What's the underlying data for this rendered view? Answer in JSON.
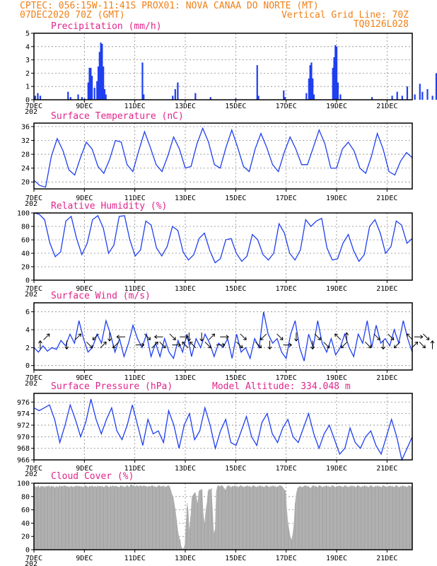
{
  "header": {
    "line1_left": "CPTEC:   056:15W-11:41S  PROX01: NOVA CANAA DO NORTE (MT)",
    "line2_left": "07DEC2020 70Z (GMT)",
    "line2_right": "Vertical Grid Line: 70Z",
    "line3_right": "TQ0126L028"
  },
  "x_tick_labels": [
    "7DEC",
    "9DEC",
    "11DEC",
    "13DEC",
    "15DEC",
    "17DEC",
    "19DEC",
    "21DEC"
  ],
  "year_fragment": "202",
  "chart_data": [
    {
      "type": "bar",
      "title": "Precipitation (mm/h)",
      "color": "#1f3ff0",
      "ylim": [
        0,
        5
      ],
      "yticks": [
        0,
        1,
        2,
        3,
        4,
        5
      ],
      "grid": true,
      "events": [
        [
          0.05,
          0.3
        ],
        [
          0.15,
          0.5
        ],
        [
          0.25,
          0.3
        ],
        [
          1.35,
          0.6
        ],
        [
          1.45,
          0.2
        ],
        [
          1.75,
          0.4
        ],
        [
          1.9,
          0.2
        ],
        [
          2.0,
          0.1
        ],
        [
          2.15,
          1.3
        ],
        [
          2.2,
          2.4
        ],
        [
          2.25,
          2.4
        ],
        [
          2.3,
          1.8
        ],
        [
          2.4,
          0.9
        ],
        [
          2.5,
          1.4
        ],
        [
          2.55,
          2.5
        ],
        [
          2.6,
          3.6
        ],
        [
          2.65,
          4.3
        ],
        [
          2.7,
          4.2
        ],
        [
          2.75,
          2.5
        ],
        [
          2.8,
          0.8
        ],
        [
          2.85,
          0.4
        ],
        [
          4.3,
          2.8
        ],
        [
          4.35,
          0.4
        ],
        [
          5.5,
          0.3
        ],
        [
          5.6,
          0.8
        ],
        [
          5.7,
          1.3
        ],
        [
          6.4,
          0.5
        ],
        [
          7.0,
          0.2
        ],
        [
          8.0,
          0.1
        ],
        [
          8.85,
          2.6
        ],
        [
          8.9,
          0.3
        ],
        [
          9.9,
          0.7
        ],
        [
          9.95,
          0.2
        ],
        [
          10.8,
          0.5
        ],
        [
          10.9,
          1.6
        ],
        [
          10.95,
          2.6
        ],
        [
          11.0,
          2.8
        ],
        [
          11.05,
          1.6
        ],
        [
          11.1,
          0.4
        ],
        [
          11.85,
          2.4
        ],
        [
          11.9,
          3.2
        ],
        [
          11.95,
          4.1
        ],
        [
          12.0,
          4.0
        ],
        [
          12.05,
          1.3
        ],
        [
          12.15,
          0.4
        ],
        [
          13.4,
          0.2
        ],
        [
          14.2,
          0.3
        ],
        [
          14.4,
          0.6
        ],
        [
          14.6,
          0.3
        ],
        [
          14.8,
          1.0
        ],
        [
          15.1,
          0.4
        ],
        [
          15.3,
          1.2
        ],
        [
          15.4,
          0.6
        ],
        [
          15.6,
          0.8
        ],
        [
          15.8,
          0.3
        ],
        [
          15.95,
          2.0
        ]
      ]
    },
    {
      "type": "line",
      "title": "Surface Temperature (nC)",
      "color": "#1f3ff0",
      "ylim": [
        18,
        37
      ],
      "yticks": [
        20,
        24,
        28,
        32,
        36
      ],
      "grid": true,
      "y": [
        20.5,
        19,
        18.5,
        27.5,
        32.5,
        29,
        23.5,
        22,
        27,
        31.5,
        29.5,
        24.5,
        22.5,
        26.5,
        32,
        31.5,
        25,
        23,
        29,
        34.5,
        30,
        25,
        23,
        27.5,
        33,
        29.5,
        24,
        24.5,
        31,
        35.5,
        31.5,
        25,
        24,
        30,
        35,
        30,
        24.5,
        23,
        29.5,
        34,
        30,
        25,
        23,
        28.5,
        33,
        29.5,
        25,
        25,
        30,
        35,
        31,
        24,
        24,
        29.5,
        31.5,
        29,
        24,
        22.5,
        27.5,
        34,
        29.5,
        23,
        22,
        26,
        28.5,
        27
      ]
    },
    {
      "type": "line",
      "title": "Relative Humidity (%)",
      "color": "#1f3ff0",
      "ylim": [
        0,
        100
      ],
      "yticks": [
        0,
        20,
        40,
        60,
        80,
        100
      ],
      "grid": true,
      "y": [
        100,
        98,
        90,
        55,
        35,
        42,
        88,
        95,
        62,
        38,
        55,
        90,
        96,
        78,
        40,
        52,
        95,
        96,
        60,
        36,
        45,
        88,
        82,
        48,
        36,
        50,
        80,
        74,
        42,
        30,
        38,
        62,
        70,
        44,
        26,
        32,
        60,
        62,
        40,
        28,
        36,
        68,
        60,
        38,
        30,
        40,
        84,
        70,
        40,
        30,
        45,
        90,
        80,
        88,
        92,
        48,
        30,
        32,
        55,
        68,
        44,
        28,
        38,
        80,
        90,
        70,
        40,
        50,
        88,
        82,
        55,
        62
      ]
    },
    {
      "type": "line",
      "title": "Surface Wind (m/s)",
      "color": "#1f3ff0",
      "ylim": [
        -0.5,
        7
      ],
      "yticks": [
        0,
        2,
        4,
        6
      ],
      "grid": true,
      "y": [
        2.0,
        1.5,
        2.2,
        1.6,
        2.0,
        1.8,
        2.8,
        2.2,
        3.5,
        2.5,
        5.0,
        3.0,
        1.5,
        2.0,
        3.5,
        2.5,
        5.0,
        3.5,
        1.5,
        3.0,
        1.0,
        2.5,
        4.5,
        3.0,
        2.0,
        3.5,
        1.0,
        2.5,
        1.0,
        3.0,
        1.5,
        0.8,
        2.8,
        1.5,
        3.5,
        1.0,
        3.0,
        2.0,
        3.5,
        2.5,
        1.0,
        2.5,
        2.0,
        3.0,
        0.8,
        3.5,
        1.5,
        2.0,
        0.8,
        3.0,
        2.0,
        6.0,
        3.5,
        2.5,
        3.0,
        1.5,
        0.8,
        3.5,
        5.0,
        2.0,
        0.5,
        3.5,
        2.0,
        5.0,
        2.5,
        1.5,
        3.0,
        1.2,
        2.0,
        3.5,
        2.0,
        1.0,
        3.5,
        2.5,
        5.0,
        2.0,
        4.5,
        2.5,
        3.0,
        2.2,
        4.0,
        2.5,
        5.0,
        3.0,
        1.5
      ],
      "arrows": [
        [
          0.25,
          "N"
        ],
        [
          0.5,
          "NE"
        ],
        [
          1.3,
          "S"
        ],
        [
          1.75,
          "NE"
        ],
        [
          2.2,
          "SE"
        ],
        [
          2.45,
          "SW"
        ],
        [
          2.75,
          "NE"
        ],
        [
          3.0,
          "S"
        ],
        [
          3.25,
          "SW"
        ],
        [
          3.45,
          "W"
        ],
        [
          4.2,
          "E"
        ],
        [
          4.5,
          "SE"
        ],
        [
          4.8,
          "NE"
        ],
        [
          4.95,
          "W"
        ],
        [
          5.1,
          "SE"
        ],
        [
          5.5,
          "SE"
        ],
        [
          5.65,
          "E"
        ],
        [
          5.95,
          "E"
        ],
        [
          6.0,
          "NW"
        ],
        [
          6.15,
          "S"
        ],
        [
          6.3,
          "NW"
        ],
        [
          6.65,
          "S"
        ],
        [
          6.9,
          "SE"
        ],
        [
          7.05,
          "NE"
        ],
        [
          7.4,
          "E"
        ],
        [
          7.55,
          "E"
        ],
        [
          8.15,
          "SE"
        ],
        [
          8.3,
          "SE"
        ],
        [
          8.9,
          "SE"
        ],
        [
          9.1,
          "SW"
        ],
        [
          9.35,
          "S"
        ],
        [
          9.75,
          "SE"
        ],
        [
          10.05,
          "E"
        ],
        [
          10.4,
          "S"
        ],
        [
          11.05,
          "S"
        ],
        [
          11.25,
          "SE"
        ],
        [
          11.6,
          "SE"
        ],
        [
          12.05,
          "NW"
        ],
        [
          12.3,
          "SW"
        ],
        [
          12.4,
          "N"
        ],
        [
          13.25,
          "SE"
        ],
        [
          13.6,
          "SE"
        ],
        [
          13.85,
          "S"
        ],
        [
          14.15,
          "SE"
        ],
        [
          14.4,
          "SW"
        ],
        [
          14.9,
          "NW"
        ],
        [
          15.1,
          "NE"
        ],
        [
          15.25,
          "E"
        ],
        [
          15.4,
          "SE"
        ],
        [
          15.55,
          "SE"
        ],
        [
          15.8,
          "N"
        ]
      ]
    },
    {
      "type": "line",
      "title": "Surface Pressure (hPa)",
      "annotation": "Model Altitude: 334.048 m",
      "color": "#1f3ff0",
      "ylim": [
        966,
        977.5
      ],
      "yticks": [
        966,
        968,
        970,
        972,
        974,
        976
      ],
      "grid": true,
      "y": [
        975,
        974.5,
        975,
        975.5,
        973,
        969,
        972,
        975.5,
        973,
        970,
        972.5,
        976.5,
        973,
        970.5,
        973,
        975,
        971,
        969.5,
        972,
        975.5,
        972,
        968.5,
        973,
        970.5,
        971,
        969,
        974.5,
        972,
        968,
        972,
        974,
        969.5,
        971,
        975,
        972,
        968,
        971,
        973,
        969,
        968.5,
        971,
        973.5,
        970,
        968.5,
        972.5,
        974,
        970.5,
        969,
        971.5,
        973,
        970,
        969,
        971.5,
        974,
        970.5,
        968,
        970.5,
        972,
        969.5,
        967,
        968,
        971.5,
        969,
        968,
        970,
        971,
        968.5,
        967,
        970,
        973,
        970,
        966,
        968,
        970
      ]
    },
    {
      "type": "area",
      "title": "Cloud Cover (%)",
      "color": "#b0b0b0",
      "ylim": [
        0,
        100
      ],
      "yticks": [
        0,
        20,
        40,
        60,
        80,
        100
      ],
      "grid": true,
      "y": [
        95,
        96,
        94,
        95,
        97,
        93,
        96,
        95,
        96,
        94,
        95,
        96,
        95,
        97,
        94,
        96,
        95,
        96,
        93,
        96,
        95,
        94,
        97,
        95,
        96,
        95,
        97,
        96,
        95,
        96,
        94,
        95,
        96,
        95,
        94,
        96,
        95,
        97,
        95,
        96,
        95,
        96,
        94,
        95,
        97,
        96,
        95,
        94,
        96,
        95,
        97,
        95,
        95,
        96,
        94,
        97,
        95,
        96,
        95,
        96,
        94,
        95,
        97,
        96,
        95,
        94,
        96,
        95,
        97,
        95,
        96,
        96,
        95,
        94,
        95,
        97,
        95,
        96,
        94,
        95,
        97,
        96,
        94,
        97,
        98,
        96,
        97,
        95,
        96,
        97,
        95,
        96,
        97,
        95,
        96,
        97,
        95,
        96,
        94,
        96,
        95,
        96,
        97,
        95,
        96,
        94,
        95,
        96,
        97,
        95,
        96,
        95,
        97,
        94,
        95,
        96,
        97,
        95,
        90,
        84,
        80,
        70,
        60,
        45,
        30,
        20,
        15,
        5,
        2,
        2,
        8,
        40,
        70,
        60,
        30,
        50,
        80,
        82,
        85,
        87,
        80,
        70,
        88,
        90,
        90,
        92,
        55,
        40,
        60,
        70,
        88,
        92,
        90,
        93,
        60,
        25,
        30,
        88,
        95,
        97,
        95,
        96,
        97,
        95,
        93,
        90,
        95,
        96,
        97,
        95,
        94,
        96,
        95,
        97,
        95,
        96,
        94,
        95,
        97,
        96,
        95,
        94,
        96,
        95,
        97,
        95,
        96,
        94,
        95,
        97,
        96,
        95,
        94,
        96,
        95,
        97,
        95,
        96,
        94,
        95,
        97,
        96,
        95,
        94,
        96,
        95,
        97,
        95,
        96,
        94,
        95,
        96,
        97,
        96,
        95,
        93,
        90,
        88,
        60,
        40,
        30,
        20,
        15,
        25,
        40,
        70,
        85,
        92,
        94,
        96,
        95,
        94,
        95,
        96,
        97,
        95,
        96,
        95,
        93,
        94,
        96,
        97,
        95,
        96,
        94,
        95,
        97,
        96,
        95,
        94,
        96,
        95,
        97,
        95,
        96,
        94,
        95,
        97,
        96,
        95,
        94,
        96,
        95,
        97,
        95,
        96,
        94,
        95,
        97,
        96,
        95,
        94,
        96,
        95,
        97,
        95,
        96,
        94,
        95,
        97,
        96,
        95,
        94,
        96,
        95,
        97,
        95,
        96,
        94,
        95,
        97,
        96,
        95,
        94,
        96,
        95,
        97,
        95,
        96,
        94,
        95,
        97,
        96,
        95,
        94,
        96,
        95,
        97,
        95,
        96,
        94,
        95,
        97,
        96,
        95,
        94,
        96,
        95,
        97,
        95,
        96,
        94,
        95,
        97,
        96,
        95,
        97
      ]
    }
  ]
}
